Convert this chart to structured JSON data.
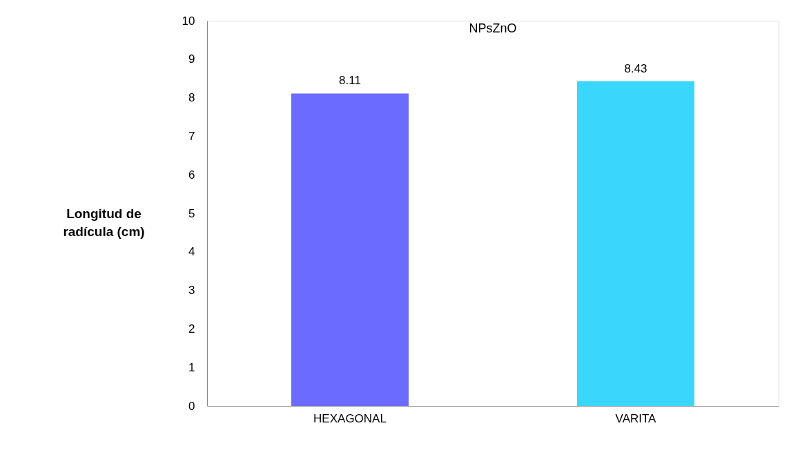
{
  "chart_data": {
    "type": "bar",
    "title": "NPsZnO",
    "ylabel": "Longitud de\nradícula (cm)",
    "categories": [
      "HEXAGONAL",
      "VARITA"
    ],
    "series": [
      {
        "values": [
          8.11,
          8.43
        ],
        "colors": [
          "#6b6bff",
          "#3ad6fc"
        ]
      }
    ],
    "ylim": [
      0,
      10
    ],
    "yticks": [
      0,
      1,
      2,
      3,
      4,
      5,
      6,
      7,
      8,
      9,
      10
    ],
    "grid": false,
    "data_labels": true
  }
}
